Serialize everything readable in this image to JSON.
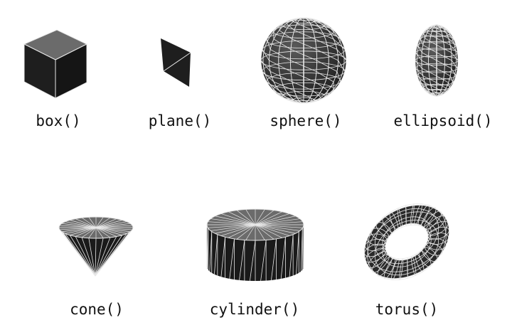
{
  "shapes": [
    {
      "label": "box()",
      "icon": "cube-icon"
    },
    {
      "label": "plane()",
      "icon": "plane-icon"
    },
    {
      "label": "sphere()",
      "icon": "sphere-icon"
    },
    {
      "label": "ellipsoid()",
      "icon": "ellipsoid-icon"
    },
    {
      "label": "cone()",
      "icon": "cone-icon"
    },
    {
      "label": "cylinder()",
      "icon": "cylinder-icon"
    },
    {
      "label": "torus()",
      "icon": "torus-icon"
    }
  ],
  "colors": {
    "face_dark": "#1e1e1e",
    "face_top": "#6b6b6b",
    "face_mid": "#3a3a3a",
    "wire": "#e8e8e8",
    "text": "#111111"
  }
}
